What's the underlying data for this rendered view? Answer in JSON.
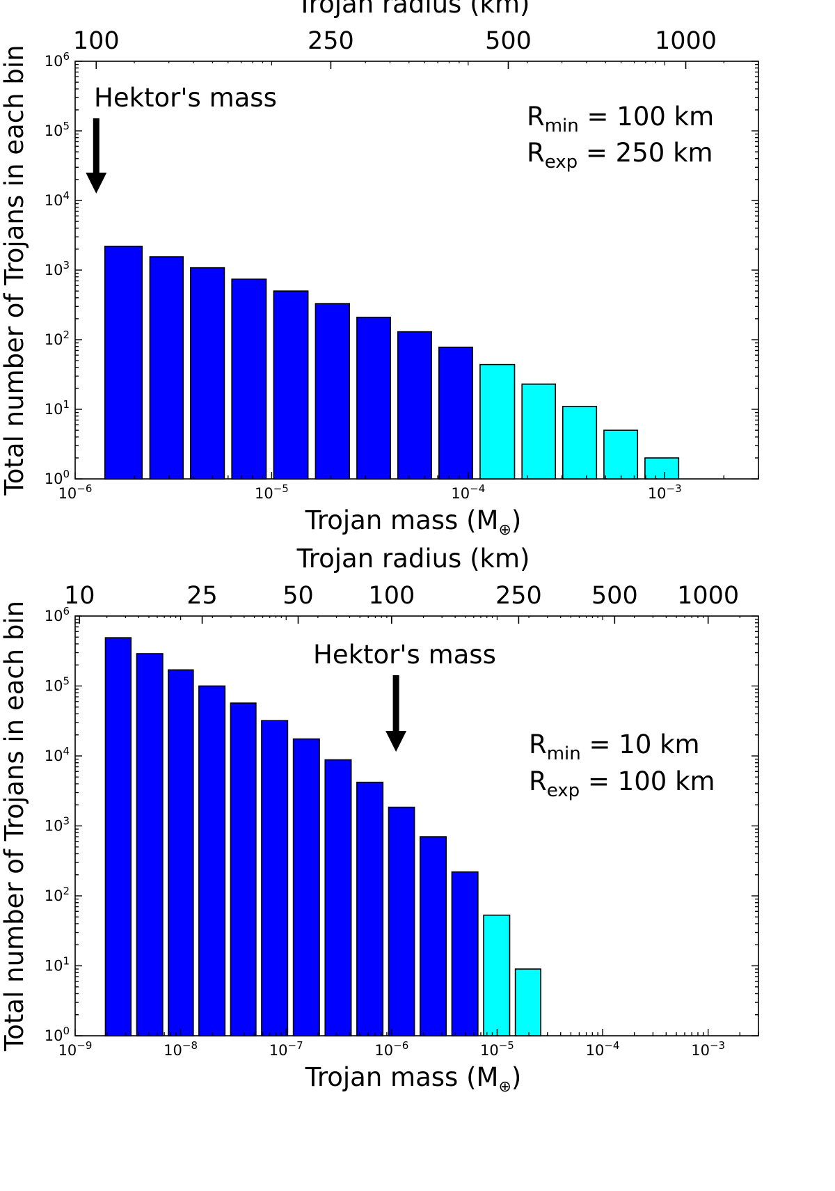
{
  "chart_data": [
    {
      "type": "bar",
      "x_scale": "log",
      "y_scale": "log",
      "xlabel": "Trojan mass (M",
      "xlabel_symbol": "⊕",
      "xlabel_suffix": ")",
      "ylabel": "Total number of Trojans in each bin",
      "top_xlabel": "Trojan radius (km)",
      "xlim": [
        1e-06,
        0.003
      ],
      "ylim": [
        1,
        1000000
      ],
      "xtick_exponents": [
        -6,
        -5,
        -4,
        -3
      ],
      "ytick_exponents": [
        0,
        1,
        2,
        3,
        4,
        5,
        6
      ],
      "top_ticks": [
        {
          "label": "100",
          "mass": 1.28e-06
        },
        {
          "label": "250",
          "mass": 2e-05
        },
        {
          "label": "500",
          "mass": 0.00016
        },
        {
          "label": "1000",
          "mass": 0.00128
        }
      ],
      "bars": [
        {
          "left": 1.35e-06,
          "right": 2.3e-06,
          "value": 2200,
          "color": "#0000ff"
        },
        {
          "left": 2.3e-06,
          "right": 3.7e-06,
          "value": 1550,
          "color": "#0000ff"
        },
        {
          "left": 3.7e-06,
          "right": 6e-06,
          "value": 1080,
          "color": "#0000ff"
        },
        {
          "left": 6e-06,
          "right": 9.8e-06,
          "value": 740,
          "color": "#0000ff"
        },
        {
          "left": 9.8e-06,
          "right": 1.6e-05,
          "value": 500,
          "color": "#0000ff"
        },
        {
          "left": 1.6e-05,
          "right": 2.6e-05,
          "value": 330,
          "color": "#0000ff"
        },
        {
          "left": 2.6e-05,
          "right": 4.2e-05,
          "value": 210,
          "color": "#0000ff"
        },
        {
          "left": 4.2e-05,
          "right": 6.8e-05,
          "value": 130,
          "color": "#0000ff"
        },
        {
          "left": 6.8e-05,
          "right": 0.00011,
          "value": 78,
          "color": "#0000ff"
        },
        {
          "left": 0.00011,
          "right": 0.00018,
          "value": 44,
          "color": "#00ffff"
        },
        {
          "left": 0.00018,
          "right": 0.00029,
          "value": 23,
          "color": "#00ffff"
        },
        {
          "left": 0.00029,
          "right": 0.00047,
          "value": 11,
          "color": "#00ffff"
        },
        {
          "left": 0.00047,
          "right": 0.00076,
          "value": 5,
          "color": "#00ffff"
        },
        {
          "left": 0.00076,
          "right": 0.00123,
          "value": 2,
          "color": "#00ffff"
        }
      ],
      "annotation": {
        "text": "Hektor's mass",
        "mass": 1.28e-06
      },
      "params": [
        {
          "symbol": "R",
          "subscript": "min",
          "value": "= 100 km"
        },
        {
          "symbol": "R",
          "subscript": "exp",
          "value": "= 250 km"
        }
      ]
    },
    {
      "type": "bar",
      "x_scale": "log",
      "y_scale": "log",
      "xlabel": "Trojan mass (M",
      "xlabel_symbol": "⊕",
      "xlabel_suffix": ")",
      "ylabel": "Total number of Trojans in each bin",
      "top_xlabel": "Trojan radius (km)",
      "xlim": [
        1e-09,
        0.003
      ],
      "ylim": [
        1,
        1000000
      ],
      "xtick_exponents": [
        -9,
        -8,
        -7,
        -6,
        -5,
        -4,
        -3
      ],
      "ytick_exponents": [
        0,
        1,
        2,
        3,
        4,
        5,
        6
      ],
      "top_ticks": [
        {
          "label": "10",
          "mass": 1.1e-09
        },
        {
          "label": "25",
          "mass": 1.6e-08
        },
        {
          "label": "50",
          "mass": 1.3e-07
        },
        {
          "label": "100",
          "mass": 1e-06
        },
        {
          "label": "250",
          "mass": 1.6e-05
        },
        {
          "label": "500",
          "mass": 0.00013
        },
        {
          "label": "1000",
          "mass": 0.001
        }
      ],
      "bars": [
        {
          "left": 1.82e-09,
          "right": 3.6e-09,
          "value": 490000,
          "color": "#0000ff"
        },
        {
          "left": 3.6e-09,
          "right": 7.2e-09,
          "value": 290000,
          "color": "#0000ff"
        },
        {
          "left": 7.2e-09,
          "right": 1.4e-08,
          "value": 170000,
          "color": "#0000ff"
        },
        {
          "left": 1.4e-08,
          "right": 2.8e-08,
          "value": 100000,
          "color": "#0000ff"
        },
        {
          "left": 2.8e-08,
          "right": 5.5e-08,
          "value": 57000,
          "color": "#0000ff"
        },
        {
          "left": 5.5e-08,
          "right": 1.1e-07,
          "value": 32000,
          "color": "#0000ff"
        },
        {
          "left": 1.1e-07,
          "right": 2.2e-07,
          "value": 17500,
          "color": "#0000ff"
        },
        {
          "left": 2.2e-07,
          "right": 4.4e-07,
          "value": 8800,
          "color": "#0000ff"
        },
        {
          "left": 4.4e-07,
          "right": 8.8e-07,
          "value": 4200,
          "color": "#0000ff"
        },
        {
          "left": 8.8e-07,
          "right": 1.75e-06,
          "value": 1850,
          "color": "#0000ff"
        },
        {
          "left": 1.75e-06,
          "right": 3.5e-06,
          "value": 700,
          "color": "#0000ff"
        },
        {
          "left": 3.5e-06,
          "right": 7e-06,
          "value": 220,
          "color": "#0000ff"
        },
        {
          "left": 7e-06,
          "right": 1.4e-05,
          "value": 53,
          "color": "#00ffff"
        },
        {
          "left": 1.4e-05,
          "right": 2.75e-05,
          "value": 9,
          "color": "#00ffff"
        }
      ],
      "annotation": {
        "text": "Hektor's mass",
        "mass": 1.1e-06
      },
      "params": [
        {
          "symbol": "R",
          "subscript": "min",
          "value": "= 10 km"
        },
        {
          "symbol": "R",
          "subscript": "exp",
          "value": "= 100 km"
        }
      ]
    }
  ]
}
